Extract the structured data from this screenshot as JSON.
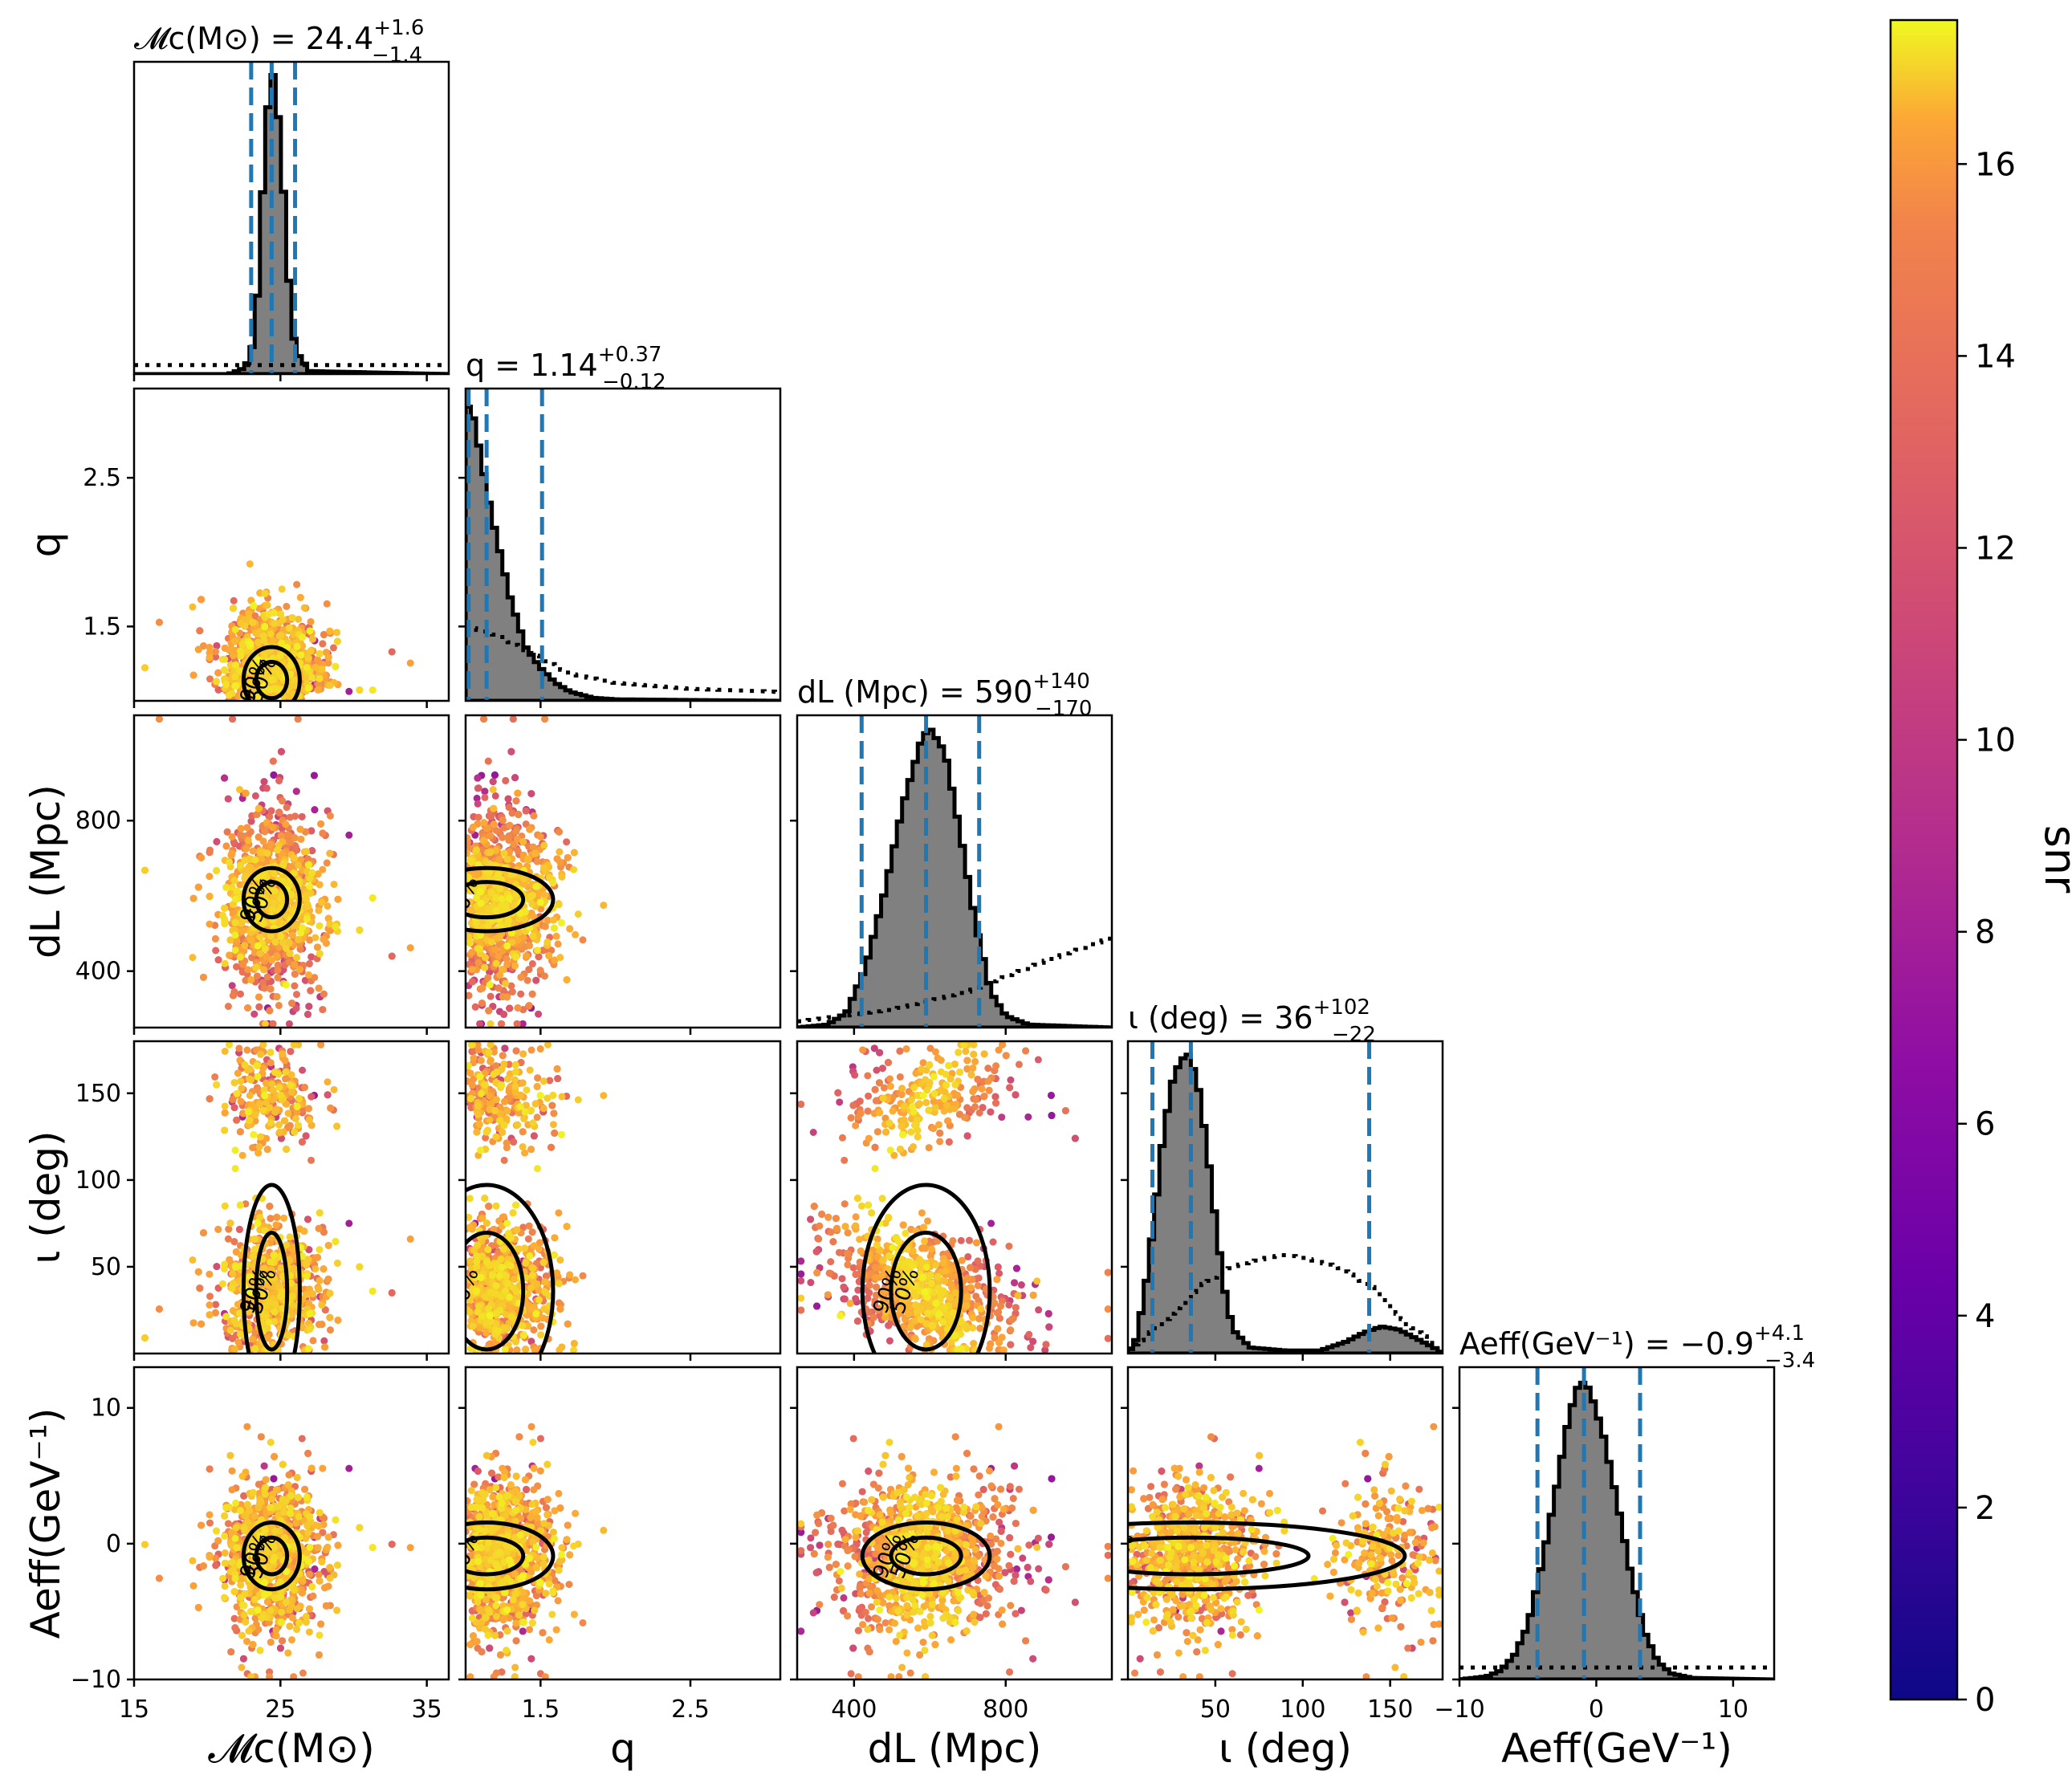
{
  "chart_data": {
    "type": "scatter",
    "parameters": [
      {
        "key": "mc",
        "label": "𝓜c(M⊙)",
        "range": [
          15,
          36.5
        ],
        "ticks": [
          15,
          25,
          35
        ],
        "tick_labels": [
          "15",
          "25",
          "35"
        ],
        "median": 24.4,
        "lo": 23.0,
        "hi": 26.0
      },
      {
        "key": "q",
        "label": "q",
        "range": [
          1.0,
          3.1
        ],
        "ticks": [
          1.5,
          2.5
        ],
        "tick_labels": [
          "1.5",
          "2.5"
        ],
        "median": 1.14,
        "lo": 1.02,
        "hi": 1.51
      },
      {
        "key": "dl",
        "label": "dL (Mpc)",
        "range": [
          250,
          1080
        ],
        "ticks": [
          400,
          800
        ],
        "tick_labels": [
          "400",
          "800"
        ],
        "median": 590,
        "lo": 420,
        "hi": 730
      },
      {
        "key": "iota",
        "label": "ι (deg)",
        "range": [
          0,
          180
        ],
        "ticks": [
          50,
          100,
          150
        ],
        "tick_labels": [
          "50",
          "100",
          "150"
        ],
        "median": 36,
        "lo": 14,
        "hi": 138
      },
      {
        "key": "aeff",
        "label": "Aeff(GeV⁻¹)",
        "range": [
          -10,
          13
        ],
        "ticks": [
          -10,
          0,
          10
        ],
        "tick_labels": [
          "−10",
          "0",
          "10"
        ],
        "median": -0.9,
        "lo": -4.3,
        "hi": 3.2
      }
    ],
    "titles": {
      "mc": {
        "prefix": "𝓜c(M⊙) = 24.4",
        "plus": "+1.6",
        "minus": "−1.4"
      },
      "q": {
        "prefix": "q = 1.14",
        "plus": "+0.37",
        "minus": "−0.12"
      },
      "dl": {
        "prefix": "dL (Mpc) = 590",
        "plus": "+140",
        "minus": "−170"
      },
      "iota": {
        "prefix": "ι (deg) = 36",
        "plus": "+102",
        "minus": "−22"
      },
      "aeff": {
        "prefix": "Aeff(GeV⁻¹) = −0.9",
        "plus": "+4.1",
        "minus": "−3.4"
      }
    },
    "y_axis_ticks": {
      "q": {
        "ticks": [
          1.5,
          2.5
        ],
        "labels": [
          "1.5",
          "2.5"
        ]
      },
      "dl": {
        "ticks": [
          400,
          800
        ],
        "labels": [
          "400",
          "800"
        ]
      },
      "iota": {
        "ticks": [
          50,
          100,
          150
        ],
        "labels": [
          "50",
          "100",
          "150"
        ]
      },
      "aeff": {
        "ticks": [
          -10,
          0,
          10
        ],
        "labels": [
          "−10",
          "0",
          "10"
        ]
      }
    },
    "histograms": {
      "mc": {
        "posterior": [
          [
            15,
            0
          ],
          [
            21.5,
            0
          ],
          [
            22.5,
            0.02
          ],
          [
            23,
            0.06
          ],
          [
            23.5,
            0.3
          ],
          [
            24,
            0.85
          ],
          [
            24.5,
            1.0
          ],
          [
            25,
            0.8
          ],
          [
            25.5,
            0.35
          ],
          [
            26,
            0.08
          ],
          [
            27,
            0.01
          ],
          [
            36.5,
            0
          ]
        ],
        "prior_level": 0.03
      },
      "q": {
        "posterior": [
          [
            1.0,
            1.0
          ],
          [
            1.05,
            0.95
          ],
          [
            1.1,
            0.82
          ],
          [
            1.15,
            0.68
          ],
          [
            1.2,
            0.56
          ],
          [
            1.25,
            0.45
          ],
          [
            1.3,
            0.34
          ],
          [
            1.35,
            0.26
          ],
          [
            1.4,
            0.18
          ],
          [
            1.5,
            0.11
          ],
          [
            1.6,
            0.06
          ],
          [
            1.7,
            0.03
          ],
          [
            1.85,
            0.01
          ],
          [
            2.0,
            0.005
          ],
          [
            3.1,
            0
          ]
        ],
        "prior": [
          [
            1.0,
            0.25
          ],
          [
            1.2,
            0.22
          ],
          [
            1.4,
            0.17
          ],
          [
            1.7,
            0.09
          ],
          [
            2.0,
            0.06
          ],
          [
            2.5,
            0.04
          ],
          [
            3.1,
            0.03
          ]
        ]
      },
      "dl": {
        "posterior": [
          [
            250,
            0
          ],
          [
            330,
            0.01
          ],
          [
            380,
            0.05
          ],
          [
            430,
            0.2
          ],
          [
            480,
            0.45
          ],
          [
            530,
            0.75
          ],
          [
            580,
            0.97
          ],
          [
            600,
            1.0
          ],
          [
            640,
            0.92
          ],
          [
            680,
            0.65
          ],
          [
            720,
            0.35
          ],
          [
            760,
            0.12
          ],
          [
            800,
            0.04
          ],
          [
            860,
            0.01
          ],
          [
            1080,
            0
          ]
        ],
        "prior": [
          [
            250,
            0.02
          ],
          [
            500,
            0.06
          ],
          [
            700,
            0.12
          ],
          [
            900,
            0.22
          ],
          [
            1080,
            0.3
          ]
        ]
      },
      "iota": {
        "posterior": [
          [
            0,
            0
          ],
          [
            5,
            0.05
          ],
          [
            10,
            0.22
          ],
          [
            15,
            0.45
          ],
          [
            20,
            0.72
          ],
          [
            25,
            0.9
          ],
          [
            30,
            0.98
          ],
          [
            35,
            1.0
          ],
          [
            40,
            0.9
          ],
          [
            45,
            0.7
          ],
          [
            50,
            0.45
          ],
          [
            55,
            0.22
          ],
          [
            60,
            0.08
          ],
          [
            70,
            0.02
          ],
          [
            90,
            0.01
          ],
          [
            110,
            0.01
          ],
          [
            125,
            0.04
          ],
          [
            135,
            0.07
          ],
          [
            145,
            0.09
          ],
          [
            155,
            0.08
          ],
          [
            165,
            0.05
          ],
          [
            175,
            0.02
          ],
          [
            180,
            0
          ]
        ],
        "prior": [
          [
            0,
            0.01
          ],
          [
            20,
            0.1
          ],
          [
            40,
            0.22
          ],
          [
            60,
            0.29
          ],
          [
            80,
            0.32
          ],
          [
            90,
            0.33
          ],
          [
            100,
            0.32
          ],
          [
            120,
            0.29
          ],
          [
            140,
            0.22
          ],
          [
            160,
            0.1
          ],
          [
            180,
            0.01
          ]
        ]
      },
      "aeff": {
        "posterior": [
          [
            -10,
            0
          ],
          [
            -8,
            0.01
          ],
          [
            -7,
            0.03
          ],
          [
            -6,
            0.08
          ],
          [
            -5,
            0.18
          ],
          [
            -4,
            0.38
          ],
          [
            -3,
            0.62
          ],
          [
            -2,
            0.88
          ],
          [
            -1.2,
            1.0
          ],
          [
            -0.5,
            0.97
          ],
          [
            0.5,
            0.82
          ],
          [
            1.5,
            0.6
          ],
          [
            2.5,
            0.36
          ],
          [
            3.5,
            0.16
          ],
          [
            4.5,
            0.06
          ],
          [
            5.5,
            0.02
          ],
          [
            7,
            0.005
          ],
          [
            13,
            0
          ]
        ],
        "prior_level": 0.04
      }
    },
    "colorbar": {
      "label": "snr",
      "range": [
        0,
        17.5
      ],
      "ticks": [
        0,
        2,
        4,
        6,
        8,
        10,
        12,
        14,
        16
      ],
      "tick_labels": [
        "0",
        "2",
        "4",
        "6",
        "8",
        "10",
        "12",
        "14",
        "16"
      ],
      "colormap": "plasma"
    },
    "contour_levels": [
      "50%",
      "90%"
    ],
    "colors": {
      "median_lines": "#1f77b4",
      "hist_fill": "#808080",
      "contour": "#000000"
    }
  }
}
